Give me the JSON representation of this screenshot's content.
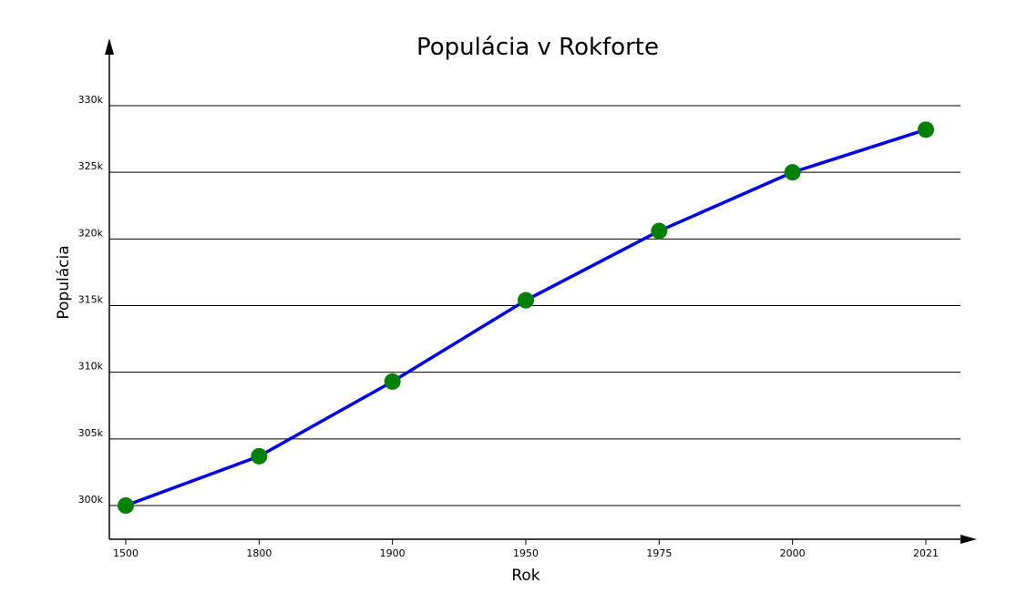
{
  "chart_data": {
    "type": "line",
    "title": "Populácia v Rokforte",
    "xlabel": "Rok",
    "ylabel": "Populácia",
    "categories": [
      "1500",
      "1800",
      "1900",
      "1950",
      "1975",
      "2000",
      "2021"
    ],
    "series": [
      {
        "values": [
          300000,
          303700,
          309300,
          315400,
          320600,
          325000,
          328200
        ]
      }
    ],
    "ylim": [
      300000,
      330000
    ],
    "yticks": [
      {
        "value": 300000,
        "label": "300k"
      },
      {
        "value": 305000,
        "label": "305k"
      },
      {
        "value": 310000,
        "label": "310k"
      },
      {
        "value": 315000,
        "label": "315k"
      },
      {
        "value": 320000,
        "label": "320k"
      },
      {
        "value": 325000,
        "label": "325k"
      },
      {
        "value": 330000,
        "label": "330k"
      }
    ],
    "grid": "horizontal",
    "colors": {
      "line": "#0000ee",
      "marker": "#008000",
      "grid": "#000000",
      "axis": "#000000"
    }
  }
}
